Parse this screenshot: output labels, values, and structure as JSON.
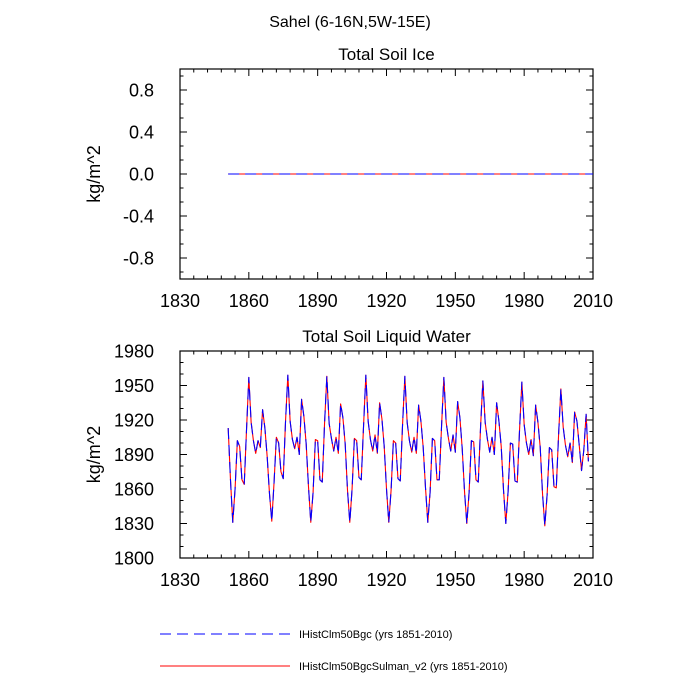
{
  "suptitle": "Sahel (6-16N,5W-15E)",
  "chart_data": [
    {
      "type": "line",
      "title": "Total Soil Ice",
      "xlabel": "",
      "ylabel": "kg/m^2",
      "xlim": [
        1830,
        2010
      ],
      "ylim": [
        -1.0,
        1.0
      ],
      "xticks": [
        1830,
        1860,
        1890,
        1920,
        1950,
        1980,
        2010
      ],
      "xtick_labels": [
        "1830",
        "1860",
        "1890",
        "1920",
        "1950",
        "1980",
        "2010"
      ],
      "yticks": [
        -0.8,
        -0.4,
        0.0,
        0.4,
        0.8
      ],
      "ytick_labels": [
        "-0.8",
        "-0.4",
        "0.0",
        "0.4",
        "0.8"
      ],
      "series": [
        {
          "name": "IHistClm50Bgc (yrs 1851-2010)",
          "color": "#0000ff",
          "dash": "dashed",
          "x": [
            1851,
            2010
          ],
          "y": [
            0.0,
            0.0
          ]
        },
        {
          "name": "IHistClm50BgcSulman_v2 (yrs 1851-2010)",
          "color": "#ff0000",
          "dash": "solid",
          "x": [
            1851,
            2010
          ],
          "y": [
            0.0,
            0.0
          ]
        }
      ]
    },
    {
      "type": "line",
      "title": "Total Soil Liquid Water",
      "xlabel": "",
      "ylabel": "kg/m^2",
      "xlim": [
        1830,
        2010
      ],
      "ylim": [
        1800,
        1980
      ],
      "xticks": [
        1830,
        1860,
        1890,
        1920,
        1950,
        1980,
        2010
      ],
      "xtick_labels": [
        "1830",
        "1860",
        "1890",
        "1920",
        "1950",
        "1980",
        "2010"
      ],
      "yticks": [
        1800,
        1830,
        1860,
        1890,
        1920,
        1950,
        1980
      ],
      "ytick_labels": [
        "1800",
        "1830",
        "1860",
        "1890",
        "1920",
        "1950",
        "1980"
      ],
      "x_start": 1851,
      "series": [
        {
          "name": "IHistClm50Bgc (yrs 1851-2010)",
          "color": "#0000ff",
          "dash": "dashed",
          "values": [
            1913,
            1868,
            1831,
            1860,
            1902,
            1897,
            1868,
            1864,
            1912,
            1957,
            1918,
            1902,
            1891,
            1902,
            1896,
            1929,
            1913,
            1888,
            1856,
            1832,
            1866,
            1905,
            1900,
            1875,
            1869,
            1919,
            1959,
            1919,
            1903,
            1895,
            1905,
            1890,
            1938,
            1923,
            1899,
            1862,
            1831,
            1857,
            1903,
            1902,
            1868,
            1866,
            1917,
            1958,
            1917,
            1904,
            1893,
            1905,
            1891,
            1934,
            1922,
            1899,
            1859,
            1831,
            1860,
            1904,
            1902,
            1870,
            1868,
            1915,
            1959,
            1919,
            1903,
            1893,
            1907,
            1891,
            1935,
            1921,
            1897,
            1860,
            1831,
            1859,
            1902,
            1900,
            1869,
            1867,
            1916,
            1958,
            1918,
            1902,
            1892,
            1905,
            1891,
            1933,
            1919,
            1896,
            1861,
            1831,
            1857,
            1904,
            1902,
            1868,
            1868,
            1915,
            1957,
            1918,
            1904,
            1893,
            1907,
            1892,
            1936,
            1922,
            1895,
            1858,
            1830,
            1857,
            1902,
            1901,
            1868,
            1866,
            1914,
            1954,
            1918,
            1903,
            1892,
            1905,
            1890,
            1935,
            1919,
            1897,
            1859,
            1830,
            1858,
            1900,
            1899,
            1867,
            1866,
            1912,
            1953,
            1916,
            1900,
            1890,
            1903,
            1889,
            1933,
            1918,
            1896,
            1856,
            1828,
            1855,
            1896,
            1894,
            1862,
            1861,
            1907,
            1947,
            1914,
            1898,
            1888,
            1900,
            1883,
            1927,
            1919,
            1898,
            1876,
            1894,
            1925,
            1884
          ]
        },
        {
          "name": "IHistClm50BgcSulman_v2 (yrs 1851-2010)",
          "color": "#ff0000",
          "dash": "solid",
          "values": [
            1913,
            1868,
            1831,
            1860,
            1902,
            1897,
            1868,
            1864,
            1912,
            1957,
            1918,
            1902,
            1891,
            1902,
            1896,
            1929,
            1913,
            1888,
            1856,
            1832,
            1866,
            1905,
            1900,
            1875,
            1869,
            1919,
            1959,
            1919,
            1903,
            1895,
            1905,
            1890,
            1938,
            1923,
            1899,
            1862,
            1831,
            1857,
            1903,
            1902,
            1868,
            1866,
            1917,
            1958,
            1917,
            1904,
            1893,
            1905,
            1891,
            1934,
            1922,
            1899,
            1859,
            1831,
            1860,
            1904,
            1902,
            1870,
            1868,
            1915,
            1959,
            1919,
            1903,
            1893,
            1907,
            1891,
            1935,
            1921,
            1897,
            1860,
            1831,
            1859,
            1902,
            1900,
            1869,
            1867,
            1916,
            1958,
            1918,
            1902,
            1892,
            1905,
            1891,
            1933,
            1919,
            1896,
            1861,
            1831,
            1857,
            1904,
            1902,
            1868,
            1868,
            1915,
            1957,
            1918,
            1904,
            1893,
            1907,
            1892,
            1936,
            1922,
            1895,
            1858,
            1830,
            1857,
            1902,
            1901,
            1868,
            1866,
            1914,
            1954,
            1918,
            1903,
            1892,
            1905,
            1890,
            1935,
            1919,
            1897,
            1859,
            1830,
            1858,
            1900,
            1899,
            1867,
            1866,
            1912,
            1953,
            1916,
            1900,
            1890,
            1903,
            1889,
            1933,
            1918,
            1896,
            1856,
            1828,
            1855,
            1896,
            1894,
            1862,
            1861,
            1907,
            1947,
            1914,
            1898,
            1888,
            1900,
            1883,
            1927,
            1919,
            1898,
            1876,
            1894,
            1925,
            1884
          ]
        }
      ]
    }
  ],
  "legend": {
    "placement": "bottom-center",
    "entries": [
      {
        "label": "IHistClm50Bgc (yrs 1851-2010)",
        "color": "#0000ff",
        "dash": "dashed"
      },
      {
        "label": "IHistClm50BgcSulman_v2 (yrs 1851-2010)",
        "color": "#ff0000",
        "dash": "solid"
      }
    ]
  }
}
